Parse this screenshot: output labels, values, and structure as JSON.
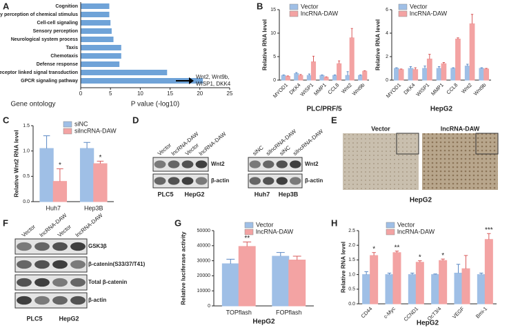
{
  "chart_data": [
    {
      "type": "barh",
      "categories": [
        "Cognition",
        "Sensory perception of chemical stimulus",
        "Cell-cell signaling",
        "Sensory perception",
        "Neurological system process",
        "Taxis",
        "Chemotaxis",
        "Defense response",
        "Cell surface receptor linked signal transduction",
        "GPCR signaling pathway"
      ],
      "values": [
        4.8,
        4.8,
        5,
        5.2,
        5.5,
        6.8,
        6.8,
        6.5,
        14.5,
        20.5
      ],
      "color": "#6fa3d8",
      "xlim": [
        0,
        25
      ],
      "xticks": [
        0,
        5,
        10,
        15,
        20,
        25
      ],
      "xlabel": "P value (-log10)",
      "ylabel": "Gene ontology",
      "annotation": [
        "Wnt2, Wnt9b,",
        "WISP1, DKK4"
      ]
    },
    {
      "type": "bar",
      "categories": [
        "MYOD1",
        "DKK4",
        "WISP1",
        "MMP1",
        "CCL8",
        "Wnt2",
        "Wnt9b"
      ],
      "series": [
        {
          "name": "Vector",
          "color": "#9fbfe6",
          "values": [
            1,
            1.4,
            1,
            1,
            1,
            1,
            1
          ],
          "errors": [
            0.1,
            0.2,
            0.3,
            0.1,
            0.1,
            0.8,
            0.1
          ]
        },
        {
          "name": "lncRNA-DAW",
          "color": "#f3a3a3",
          "values": [
            0.8,
            1,
            3.9,
            0.6,
            3.5,
            9,
            1.9
          ],
          "errors": [
            0.1,
            0.2,
            1.2,
            0.1,
            0.6,
            2,
            0.1
          ]
        }
      ],
      "ylim": [
        0,
        15
      ],
      "yticks": [
        0,
        5,
        10,
        15
      ],
      "ylabel": "Relative RNA level",
      "xlabel": "PLC/PRF/5"
    },
    {
      "type": "bar",
      "categories": [
        "MYOD1",
        "DKK4",
        "WISP1",
        "MMP1",
        "CCL8",
        "Wnt2",
        "Wnt9b"
      ],
      "series": [
        {
          "name": "Vector",
          "color": "#9fbfe6",
          "values": [
            1,
            1,
            1,
            1,
            1,
            1.2,
            1
          ],
          "errors": [
            0.05,
            0.15,
            0.2,
            0.15,
            0.05,
            0.15,
            0.05
          ]
        },
        {
          "name": "lncRNA-DAW",
          "color": "#f3a3a3",
          "values": [
            0.9,
            0.9,
            1.8,
            1.4,
            3.5,
            4.8,
            0.95
          ],
          "errors": [
            0.05,
            0.15,
            0.4,
            0.1,
            0.1,
            0.8,
            0.05
          ]
        }
      ],
      "ylim": [
        0,
        6
      ],
      "yticks": [
        0,
        2,
        4,
        6
      ],
      "ylabel": "Relative RNA level",
      "xlabel": "HepG2"
    },
    {
      "type": "bar",
      "categories": [
        "Huh7",
        "Hep3B"
      ],
      "series": [
        {
          "name": "siNC",
          "color": "#9fbfe6",
          "values": [
            1.05,
            1.05
          ],
          "errors": [
            0.25,
            0.12
          ]
        },
        {
          "name": "silncRNA-DAW",
          "color": "#f3a3a3",
          "values": [
            0.4,
            0.75
          ],
          "errors": [
            0.25,
            0.05
          ]
        }
      ],
      "annotations": [
        "*",
        "*"
      ],
      "ylim": [
        0,
        1.5
      ],
      "yticks": [
        {
          "value": 0,
          "label": "0.0"
        },
        {
          "value": 0.5,
          "label": "0.5"
        },
        {
          "value": 1,
          "label": "1.0"
        },
        {
          "value": 1.5,
          "label": "1.5"
        }
      ],
      "ylabel": "Relative Wnt2 RNA level"
    },
    {
      "type": "bar",
      "categories": [
        "TOPflash",
        "FOPflash"
      ],
      "series": [
        {
          "name": "Vector",
          "color": "#9fbfe6",
          "values": [
            28000,
            33000
          ],
          "errors": [
            3000,
            2500
          ]
        },
        {
          "name": "lncRNA-DAW",
          "color": "#f3a3a3",
          "values": [
            39500,
            30500
          ],
          "errors": [
            3000,
            2500
          ]
        }
      ],
      "annotations": [
        "**",
        null
      ],
      "ylim": [
        0,
        50000
      ],
      "yticks": [
        0,
        10000,
        20000,
        30000,
        40000,
        50000
      ],
      "ylabel": "Relative luciferase activity",
      "xlabel": "HepG2"
    },
    {
      "type": "bar",
      "categories": [
        "CD44",
        "c-Myc",
        "CCND1",
        "OcT3/4",
        "VEGF",
        "Bmi-1"
      ],
      "series": [
        {
          "name": "Vector",
          "color": "#9fbfe6",
          "values": [
            1,
            1,
            1,
            1,
            1.05,
            1
          ],
          "errors": [
            0.1,
            0.05,
            0.05,
            0.02,
            0.3,
            0.05
          ]
        },
        {
          "name": "lncRNA-DAW",
          "color": "#f3a3a3",
          "values": [
            1.65,
            1.75,
            1.42,
            1.48,
            1.2,
            2.2
          ],
          "errors": [
            0.1,
            0.05,
            0.05,
            0.05,
            0.45,
            0.2
          ]
        }
      ],
      "annotations": [
        "*",
        "**",
        "*",
        "*",
        null,
        "***"
      ],
      "ylim": [
        0,
        2.5
      ],
      "yticks": [
        {
          "value": 0,
          "label": "0.0"
        },
        {
          "value": 0.5,
          "label": "0.5"
        },
        {
          "value": 1,
          "label": "1.0"
        },
        {
          "value": 1.5,
          "label": "1.5"
        },
        {
          "value": 2,
          "label": "2.0"
        },
        {
          "value": 2.5,
          "label": "2.5"
        }
      ],
      "ylabel": "Relative RNA level",
      "xlabel": "HepG2"
    }
  ],
  "panel_labels": [
    "A",
    "B",
    "C",
    "D",
    "E",
    "F",
    "G",
    "H"
  ],
  "blot_D": {
    "left": {
      "lanes": [
        "Vector",
        "lncRNA-DAW",
        "Vector",
        "lncRNA-DAW"
      ],
      "rows": [
        "Wnt2",
        "β-actin"
      ],
      "groups": [
        "PLC5",
        "HepG2"
      ]
    },
    "right": {
      "lanes": [
        "siNC",
        "silncRNA-DAW",
        "siNC",
        "silncRNA-DAW"
      ],
      "rows": [
        "Wnt2",
        "β-actin"
      ],
      "groups": [
        "Huh7",
        "Hep3B"
      ]
    }
  },
  "panel_E": {
    "titles": [
      "Vector",
      "lncRNA-DAW"
    ],
    "caption": "HepG2"
  },
  "blot_F": {
    "lanes": [
      "Vector",
      "lncRNA-DAW",
      "Vector",
      "lncRNA-DAW"
    ],
    "rows": [
      "GSK3β",
      "β-catenin(S33/37/T41)",
      "Total β-catenin",
      "β-actin"
    ],
    "groups": [
      "PLC5",
      "HepG2"
    ]
  }
}
